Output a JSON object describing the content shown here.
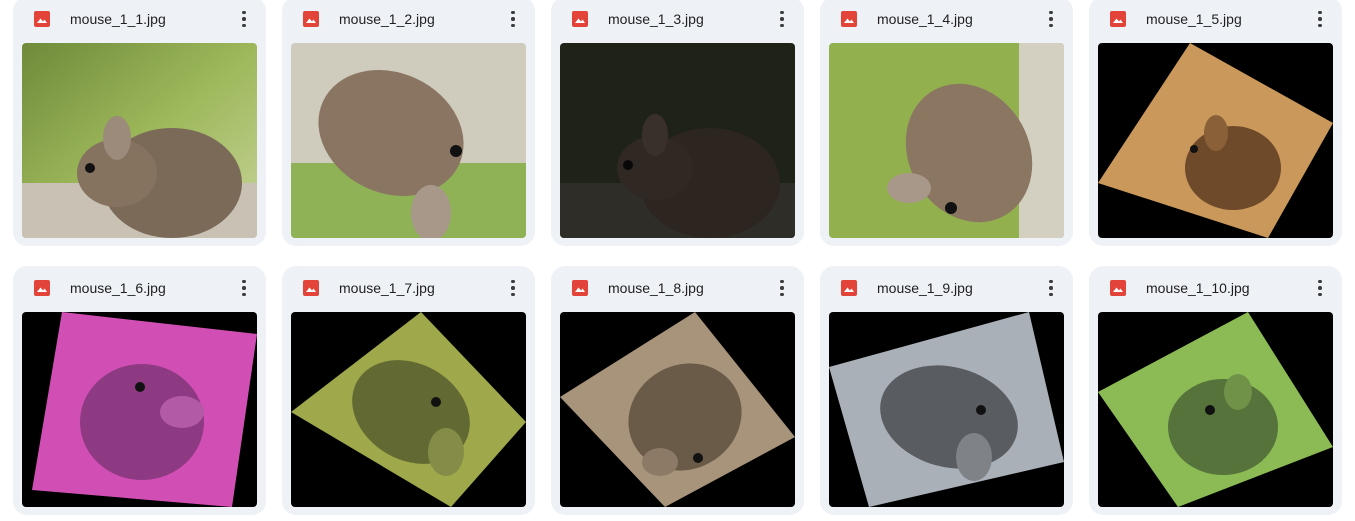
{
  "files": [
    {
      "name": "mouse_1_1.jpg",
      "icon": "image-file-icon",
      "menu_icon": "more-vert-icon"
    },
    {
      "name": "mouse_1_2.jpg",
      "icon": "image-file-icon",
      "menu_icon": "more-vert-icon"
    },
    {
      "name": "mouse_1_3.jpg",
      "icon": "image-file-icon",
      "menu_icon": "more-vert-icon"
    },
    {
      "name": "mouse_1_4.jpg",
      "icon": "image-file-icon",
      "menu_icon": "more-vert-icon"
    },
    {
      "name": "mouse_1_5.jpg",
      "icon": "image-file-icon",
      "menu_icon": "more-vert-icon"
    },
    {
      "name": "mouse_1_6.jpg",
      "icon": "image-file-icon",
      "menu_icon": "more-vert-icon"
    },
    {
      "name": "mouse_1_7.jpg",
      "icon": "image-file-icon",
      "menu_icon": "more-vert-icon"
    },
    {
      "name": "mouse_1_8.jpg",
      "icon": "image-file-icon",
      "menu_icon": "more-vert-icon"
    },
    {
      "name": "mouse_1_9.jpg",
      "icon": "image-file-icon",
      "menu_icon": "more-vert-icon"
    },
    {
      "name": "mouse_1_10.jpg",
      "icon": "image-file-icon",
      "menu_icon": "more-vert-icon"
    }
  ],
  "colors": {
    "card_background": "#eef1f6",
    "file_icon": "#e2443a",
    "text": "#1f1f1f"
  }
}
